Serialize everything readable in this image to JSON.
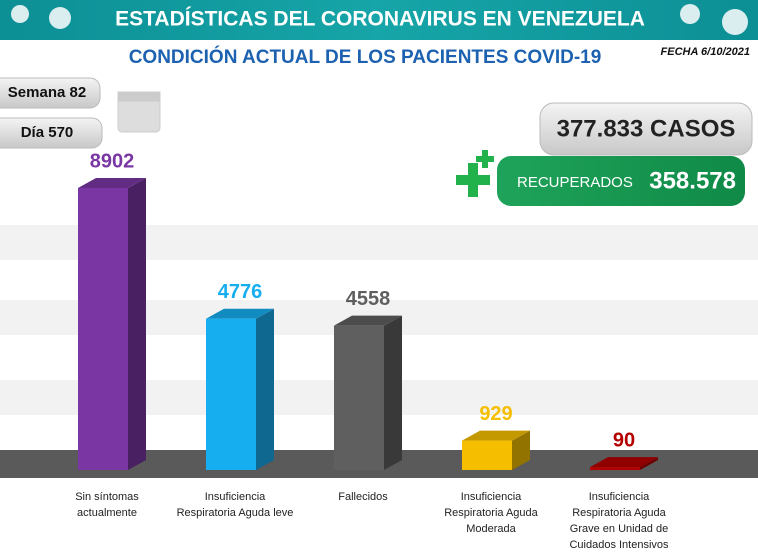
{
  "header": {
    "title": "ESTADÍSTICAS DEL CORONAVIRUS EN VENEZUELA",
    "subtitle": "CONDICIÓN ACTUAL DE LOS PACIENTES COVID-19",
    "date": "FECHA 6/10/2021"
  },
  "badges": {
    "week": "Semana 82",
    "day": "Día 570"
  },
  "totals": {
    "cases": "377.833 CASOS",
    "recovered_label": "RECUPERADOS",
    "recovered_value": "358.578"
  },
  "chart_data": {
    "type": "bar",
    "categories": [
      "Sin síntomas actualmente",
      "Insuficiencia Respiratoria Aguda leve",
      "Fallecidos",
      "Insuficiencia Respiratoria Aguda Moderada",
      "Insuficiencia Respiratoria Aguda Grave en Unidad de Cuidados Intensivos"
    ],
    "values": [
      8902,
      4776,
      4558,
      929,
      90
    ],
    "colors": [
      "#7a37a4",
      "#17aef0",
      "#5f5f5f",
      "#f5bf00",
      "#b40000"
    ]
  }
}
